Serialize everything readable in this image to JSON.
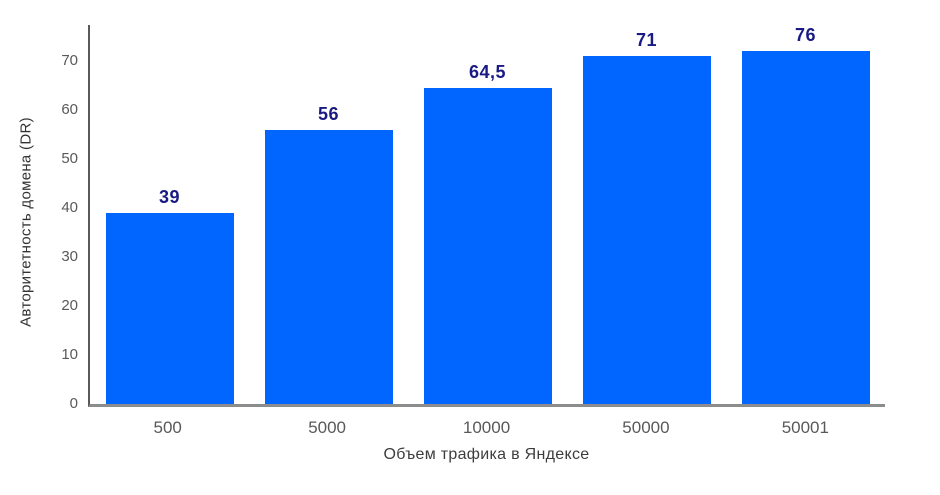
{
  "chart_data": {
    "type": "bar",
    "title": "",
    "categories": [
      "500",
      "5000",
      "10000",
      "50000",
      "50001"
    ],
    "values": [
      39,
      56,
      64.5,
      71,
      76
    ],
    "value_labels": [
      "39",
      "56",
      "64,5",
      "71",
      "76"
    ],
    "xlabel": "Объем трафика в Яндексе",
    "ylabel": "Авторитетность домена (DR)",
    "y_ticks": [
      0,
      10,
      20,
      30,
      40,
      50,
      60,
      70
    ],
    "ylim": [
      0,
      78
    ],
    "grid": false,
    "legend": "none",
    "colors": {
      "bar": "#0066ff",
      "value_label": "#1a1a85",
      "tick_label": "#595959",
      "axis_title": "#3d3d3d",
      "x_axis_line": "#8c8c8c",
      "y_axis_line": "#595959",
      "background": "#ffffff"
    }
  }
}
